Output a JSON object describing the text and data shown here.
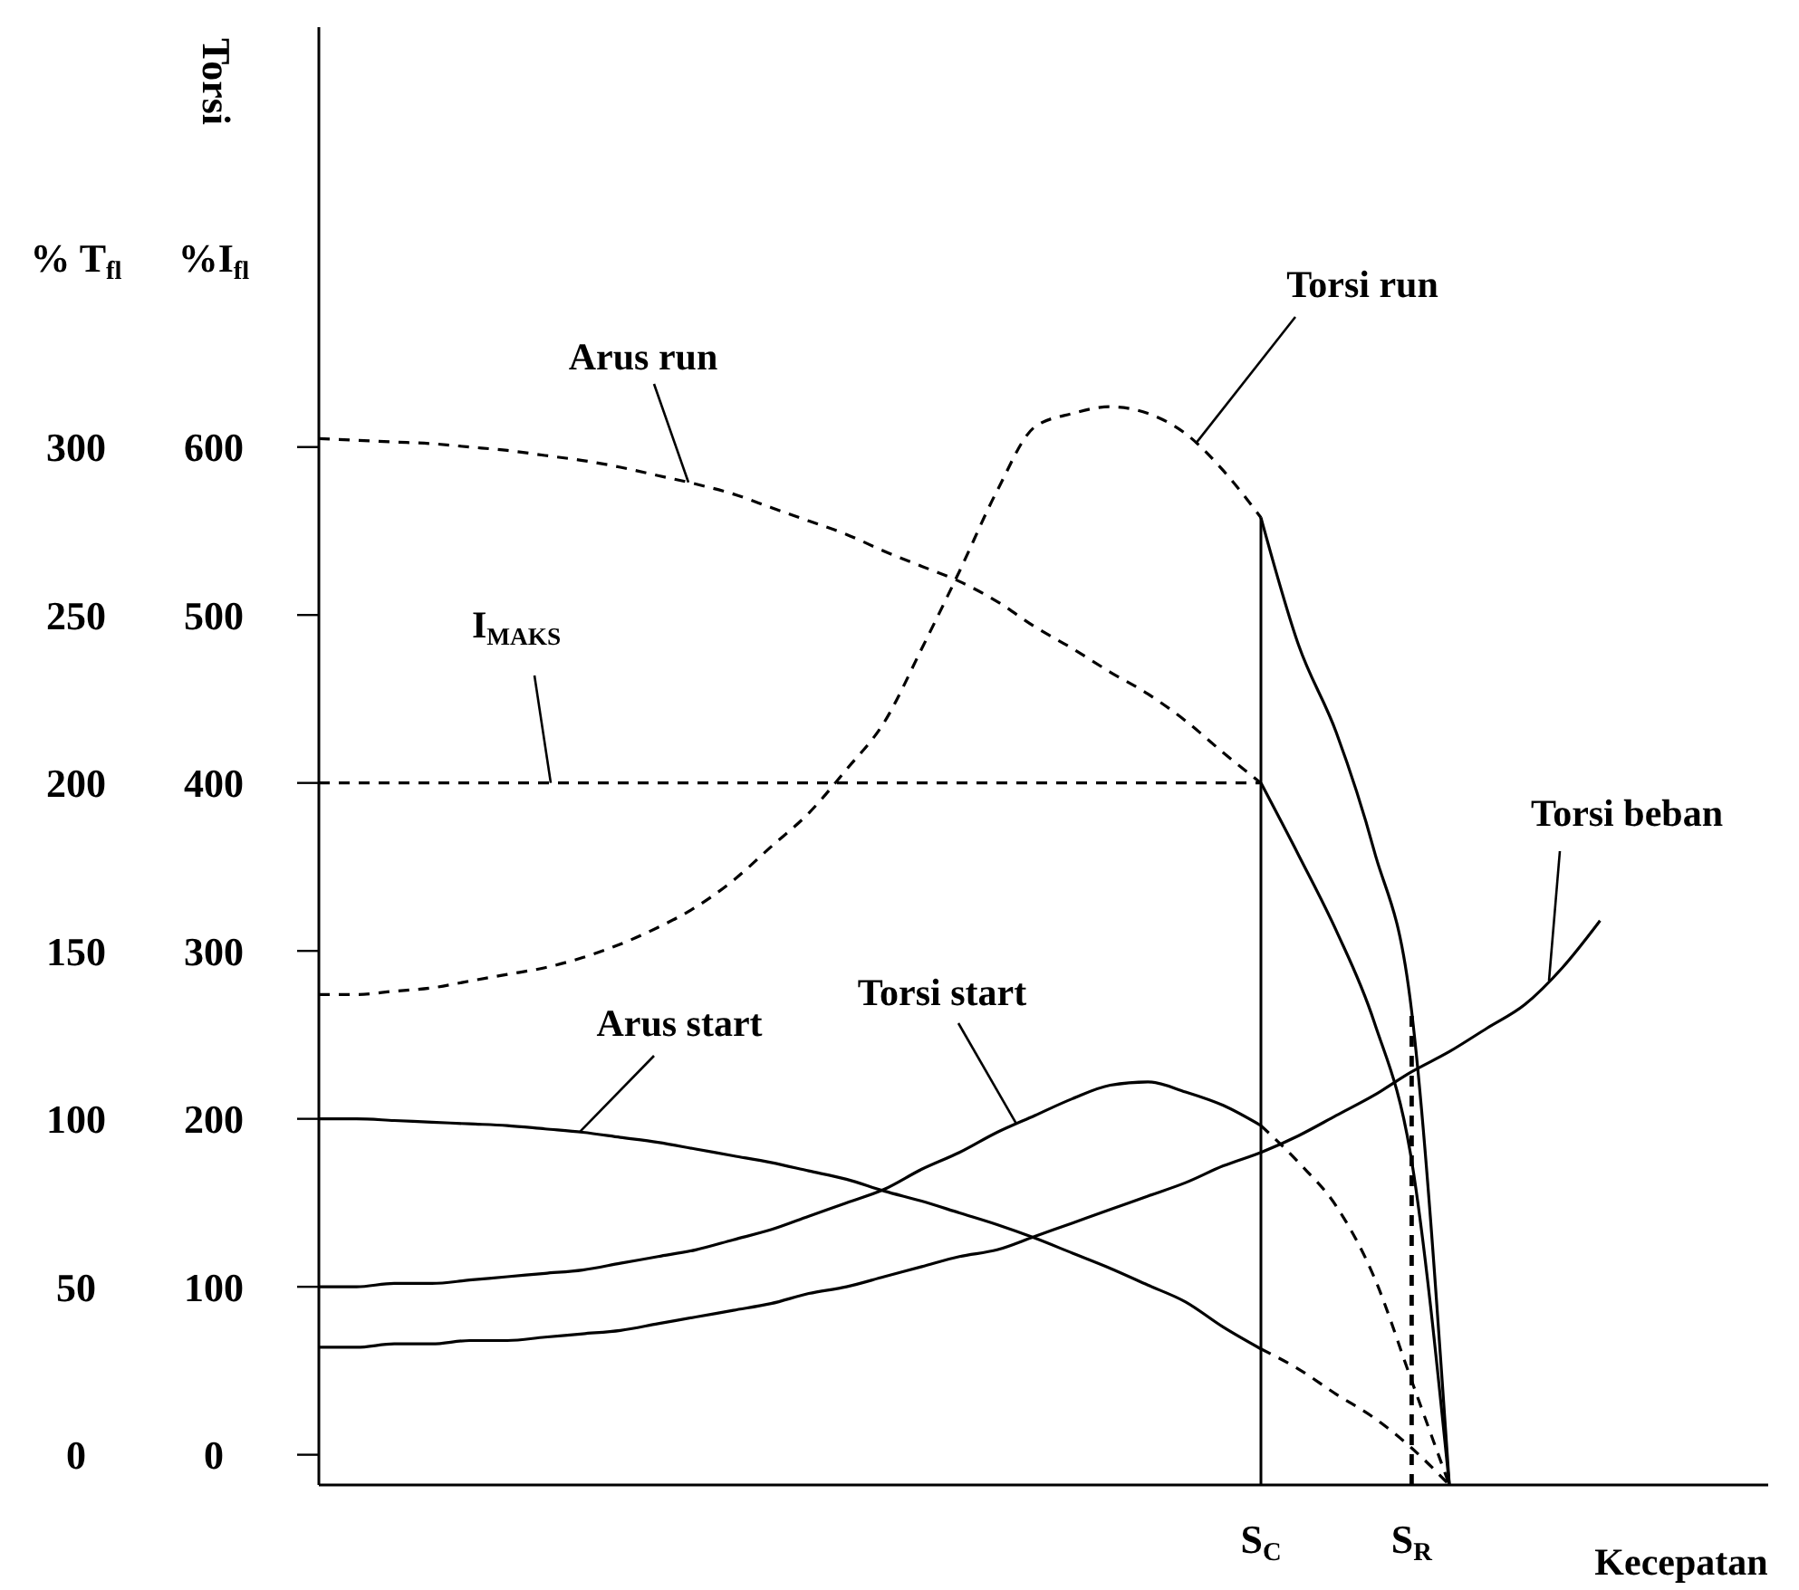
{
  "chart_data": {
    "type": "line",
    "ylabel": "% T$_{fl}$",
    "y2label": "%I$_{fl}$",
    "xlabel": "Kecepatan",
    "annotations": [
      "Torsi"
    ],
    "categories": [
      null,
      null,
      null,
      null,
      null,
      null,
      null,
      null,
      null,
      null,
      null,
      null,
      null,
      null,
      null,
      null,
      null,
      null,
      null,
      null,
      null,
      null,
      null,
      null,
      null,
      "S$_{C}$",
      null,
      null,
      null,
      "S$_{R}$",
      null,
      null,
      null,
      null,
      null,
      null,
      null,
      null,
      null
    ],
    "ylim": [
      -9,
      425
    ],
    "yticks": [
      0,
      50,
      100,
      150,
      200,
      250,
      300
    ],
    "y2lim": [
      -18,
      850
    ],
    "y2ticks": [
      0,
      100,
      200,
      300,
      400,
      500,
      600
    ],
    "ref_lines": [
      {
        "axis": "x",
        "value": "S$_{C}$",
        "line_style": "solid"
      },
      {
        "axis": "x",
        "value": "S$_{R}$",
        "line_style": "dashed"
      }
    ],
    "series": [
      {
        "name": "Torsi run",
        "color": "#000000",
        "line_style": "dashed",
        "values": [
          137,
          137,
          138,
          139,
          141,
          143,
          145,
          148,
          152,
          157,
          163,
          171,
          181,
          191,
          204,
          218,
          240,
          263,
          287,
          306,
          310,
          312,
          310,
          304,
          293,
          279,
          null,
          null,
          null,
          null,
          null,
          null,
          null,
          null,
          null,
          null,
          null,
          null,
          null
        ]
      },
      {
        "color": "#000000",
        "line_style": "solid",
        "values": [
          null,
          null,
          null,
          null,
          null,
          null,
          null,
          null,
          null,
          null,
          null,
          null,
          null,
          null,
          null,
          null,
          null,
          null,
          null,
          null,
          null,
          null,
          null,
          null,
          null,
          279,
          241,
          215,
          180,
          132,
          -9,
          null,
          null,
          null,
          null,
          null,
          null,
          null,
          null
        ]
      },
      {
        "name": "Arus run",
        "color": "#000000",
        "line_style": "dashed",
        "axis": "y2",
        "values": [
          605,
          604,
          603,
          602,
          600,
          598,
          595,
          592,
          588,
          583,
          578,
          572,
          564,
          556,
          548,
          538,
          529,
          520,
          508,
          493,
          480,
          466,
          453,
          437,
          418,
          400,
          null,
          null,
          null,
          null,
          null,
          null,
          null,
          null,
          null,
          null,
          null,
          null,
          null
        ]
      },
      {
        "color": "#000000",
        "line_style": "solid",
        "axis": "y2",
        "values": [
          null,
          null,
          null,
          null,
          null,
          null,
          null,
          null,
          null,
          null,
          null,
          null,
          null,
          null,
          null,
          null,
          null,
          null,
          null,
          null,
          null,
          null,
          null,
          null,
          null,
          400,
          357,
          312,
          258,
          175,
          -18,
          null,
          null,
          null,
          null,
          null,
          null,
          null,
          null
        ]
      },
      {
        "name": "I$_{MAKS}$",
        "color": "#000000",
        "line_style": "dashed",
        "axis": "y2",
        "values": [
          400,
          400,
          400,
          400,
          400,
          400,
          400,
          400,
          400,
          400,
          400,
          400,
          400,
          400,
          400,
          400,
          400,
          400,
          400,
          400,
          400,
          400,
          400,
          400,
          400,
          400,
          null,
          null,
          null,
          null,
          null,
          null,
          null,
          null,
          null,
          null,
          null,
          null,
          null
        ]
      },
      {
        "name": "Arus start",
        "color": "#000000",
        "line_style": "solid",
        "axis": "y2",
        "values": [
          200,
          200,
          199,
          198,
          197,
          196,
          194,
          192,
          189,
          186,
          182,
          178,
          174,
          169,
          164,
          157,
          151,
          144,
          137,
          129,
          120,
          111,
          101,
          91,
          76,
          63,
          null,
          null,
          null,
          null,
          null,
          null,
          null,
          null,
          null,
          null,
          null,
          null,
          null
        ]
      },
      {
        "color": "#000000",
        "line_style": "dashed",
        "axis": "y2",
        "values": [
          null,
          null,
          null,
          null,
          null,
          null,
          null,
          null,
          null,
          null,
          null,
          null,
          null,
          null,
          null,
          null,
          null,
          null,
          null,
          null,
          null,
          null,
          null,
          null,
          null,
          63,
          51,
          36,
          22,
          4,
          -18,
          null,
          null,
          null,
          null,
          null,
          null,
          null,
          null
        ]
      },
      {
        "name": "Torsi start",
        "color": "#000000",
        "line_style": "solid",
        "values": [
          50,
          50,
          51,
          51,
          52,
          53,
          54,
          55,
          57,
          59,
          61,
          64,
          67,
          71,
          75,
          79,
          85,
          90,
          96,
          101,
          106,
          110,
          111,
          108,
          104,
          98,
          null,
          null,
          null,
          null,
          null,
          null,
          null,
          null,
          null,
          null,
          null,
          null,
          null
        ]
      },
      {
        "color": "#000000",
        "line_style": "dashed",
        "values": [
          null,
          null,
          null,
          null,
          null,
          null,
          null,
          null,
          null,
          null,
          null,
          null,
          null,
          null,
          null,
          null,
          null,
          null,
          null,
          null,
          null,
          null,
          null,
          null,
          null,
          98,
          87,
          74,
          53,
          22,
          -9,
          null,
          null,
          null,
          null,
          null,
          null,
          null,
          null
        ]
      },
      {
        "name": "Torsi beban",
        "color": "#000000",
        "line_style": "solid",
        "values": [
          32,
          32,
          33,
          33,
          34,
          34,
          35,
          36,
          37,
          39,
          41,
          43,
          45,
          48,
          50,
          53,
          56,
          59,
          61,
          65,
          69,
          73,
          77,
          81,
          86,
          90,
          95,
          101,
          107,
          114,
          120,
          127,
          134,
          145,
          159,
          null,
          null,
          null,
          null
        ]
      }
    ]
  }
}
